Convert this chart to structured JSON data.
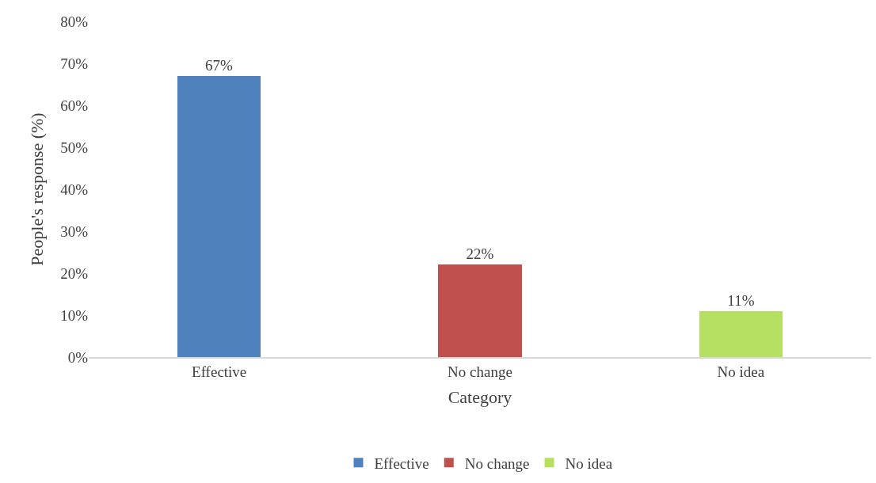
{
  "chart_data": {
    "type": "bar",
    "xlabel": "Category",
    "ylabel": "People's response (%)",
    "categories": [
      "Effective",
      "No change",
      "No idea"
    ],
    "series": [
      {
        "name": "Effective",
        "color": "#4f81bd",
        "values": [
          67,
          null,
          null
        ],
        "value_labels": [
          "67%",
          null,
          null
        ]
      },
      {
        "name": "No change",
        "color": "#c0504d",
        "values": [
          null,
          22,
          null
        ],
        "value_labels": [
          null,
          "22%",
          null
        ]
      },
      {
        "name": "No idea",
        "color": "#b5e061",
        "values": [
          null,
          null,
          11
        ],
        "value_labels": [
          null,
          null,
          "11%"
        ]
      }
    ],
    "ylim": [
      0,
      80
    ],
    "yticks": [
      {
        "value": 0,
        "label": "0%"
      },
      {
        "value": 10,
        "label": "10%"
      },
      {
        "value": 20,
        "label": "20%"
      },
      {
        "value": 30,
        "label": "30%"
      },
      {
        "value": 40,
        "label": "40%"
      },
      {
        "value": 50,
        "label": "50%"
      },
      {
        "value": 60,
        "label": "60%"
      },
      {
        "value": 70,
        "label": "70%"
      },
      {
        "value": 80,
        "label": "80%"
      }
    ],
    "grid": false,
    "legend": "bottom"
  }
}
